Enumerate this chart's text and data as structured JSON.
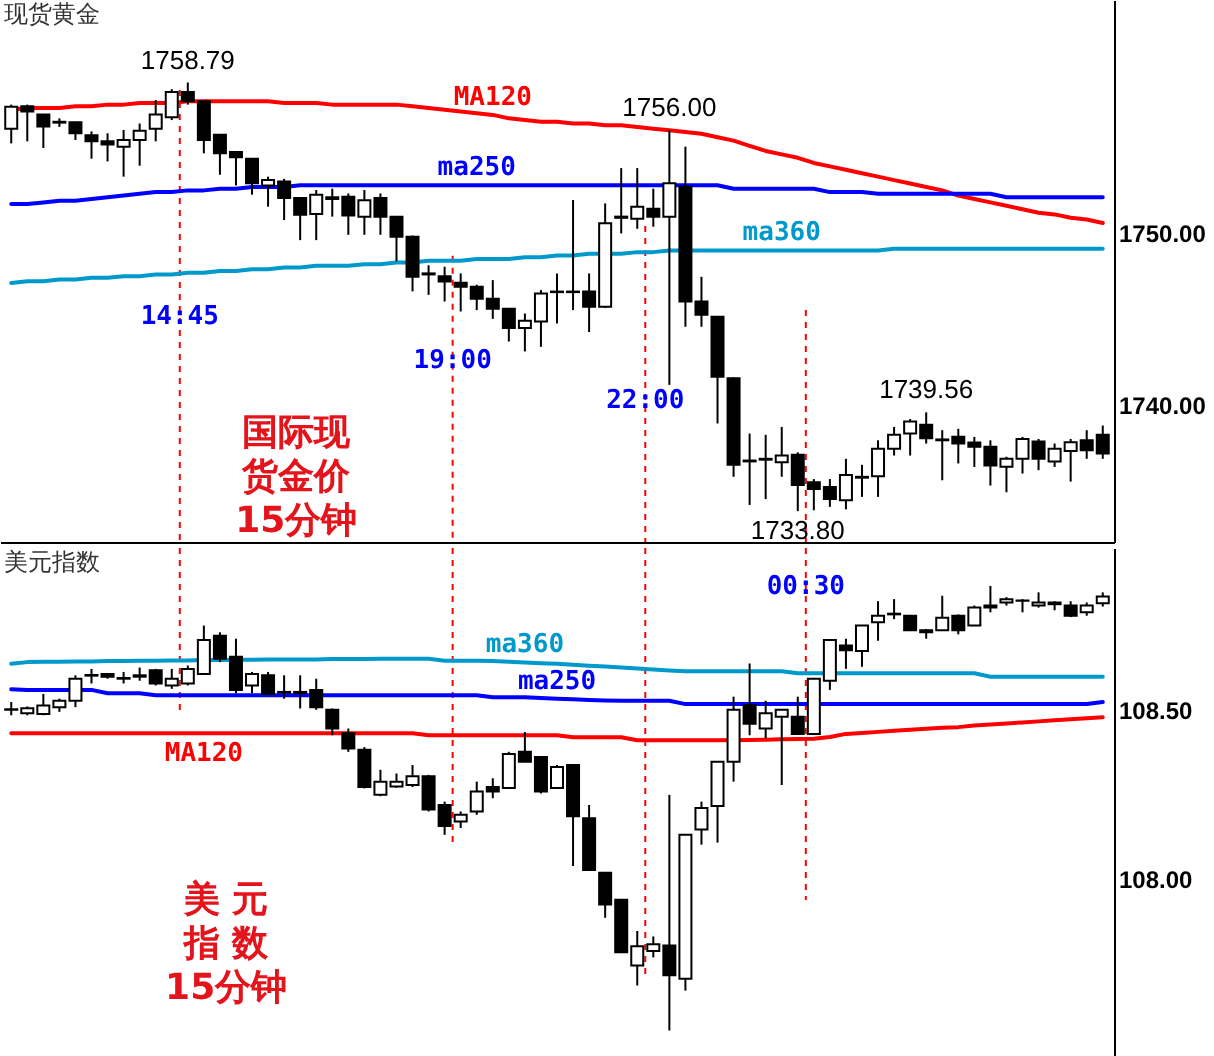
{
  "chart_data": [
    {
      "type": "candlestick",
      "title": "现货黄金",
      "tick_labels": "y",
      "ylim": [
        1732.0,
        1763.6
      ],
      "yticks": [
        {
          "value": 1740,
          "label": "1740.00"
        },
        {
          "value": 1750,
          "label": "1750.00"
        }
      ],
      "categories": [
        null,
        null,
        null,
        null,
        null,
        null,
        null,
        null,
        null,
        null,
        null,
        null,
        null,
        null,
        null,
        null,
        null,
        null,
        null,
        null,
        null,
        null,
        null,
        null,
        null,
        null,
        null,
        null,
        null,
        null,
        null,
        null,
        null,
        null,
        null,
        null,
        null,
        null,
        null,
        null,
        null,
        null,
        null,
        null,
        null,
        null,
        null,
        null,
        null,
        null,
        null,
        null,
        null,
        null,
        null,
        null,
        null,
        null,
        null,
        null,
        null,
        null,
        null,
        null,
        null,
        null,
        null,
        null,
        null
      ],
      "ohlc": [
        [
          1756.1,
          1757.5,
          1755.24,
          1757.38
        ],
        [
          1757.4,
          1757.5,
          1755.36,
          1757.1
        ],
        [
          1756.92,
          1756.92,
          1754.97,
          1756.22
        ],
        [
          1756.5,
          1756.7,
          1756.2,
          1756.45
        ],
        [
          1756.47,
          1756.5,
          1755.44,
          1755.83
        ],
        [
          1755.71,
          1755.94,
          1754.35,
          1755.36
        ],
        [
          1755.36,
          1755.83,
          1754.19,
          1755.17
        ],
        [
          1755.05,
          1756.02,
          1753.3,
          1755.44
        ],
        [
          1755.44,
          1756.4,
          1753.94,
          1755.98
        ],
        [
          1756.1,
          1757.77,
          1755.36,
          1756.92
        ],
        [
          1756.76,
          1758.4,
          1756.6,
          1758.24
        ],
        [
          1758.24,
          1758.79,
          1757.5,
          1757.69
        ],
        [
          1757.69,
          1757.7,
          1754.66,
          1755.44
        ],
        [
          1755.75,
          1755.75,
          1753.41,
          1754.66
        ],
        [
          1754.74,
          1754.74,
          1752.79,
          1754.43
        ],
        [
          1754.35,
          1754.35,
          1752.25,
          1752.91
        ],
        [
          1752.79,
          1753.3,
          1751.55,
          1753.1
        ],
        [
          1753.02,
          1753.17,
          1750.77,
          1752.05
        ],
        [
          1752.05,
          1752.05,
          1749.6,
          1751.08
        ],
        [
          1751.12,
          1752.52,
          1749.6,
          1752.24
        ],
        [
          1752.1,
          1752.6,
          1750.97,
          1752.0
        ],
        [
          1752.13,
          1752.32,
          1749.91,
          1751.04
        ],
        [
          1750.96,
          1752.52,
          1749.91,
          1751.93
        ],
        [
          1752.05,
          1752.32,
          1749.91,
          1750.96
        ],
        [
          1750.96,
          1750.96,
          1748.36,
          1749.8
        ],
        [
          1749.8,
          1749.87,
          1746.61,
          1747.46
        ],
        [
          1747.66,
          1748.13,
          1746.41,
          1747.6
        ],
        [
          1747.5,
          1748.05,
          1746.02,
          1747.19
        ],
        [
          1747.11,
          1747.66,
          1745.44,
          1746.88
        ],
        [
          1746.88,
          1747.0,
          1745.52,
          1746.18
        ],
        [
          1746.18,
          1747.27,
          1745.01,
          1745.6
        ],
        [
          1745.6,
          1745.6,
          1743.69,
          1744.47
        ],
        [
          1744.47,
          1745.32,
          1743.11,
          1744.9
        ],
        [
          1744.86,
          1746.69,
          1743.38,
          1746.49
        ],
        [
          1746.57,
          1747.66,
          1744.74,
          1746.6
        ],
        [
          1746.6,
          1751.94,
          1745.52,
          1746.57
        ],
        [
          1746.6,
          1747.66,
          1744.24,
          1745.71
        ],
        [
          1745.71,
          1751.74,
          1745.64,
          1750.58
        ],
        [
          1750.97,
          1753.8,
          1749.99,
          1750.9
        ],
        [
          1750.85,
          1753.8,
          1750.26,
          1751.55
        ],
        [
          1751.43,
          1752.6,
          1750.38,
          1750.97
        ],
        [
          1750.97,
          1756.0,
          1741.16,
          1752.91
        ],
        [
          1752.71,
          1755.05,
          1744.55,
          1746.02
        ],
        [
          1746.02,
          1747.46,
          1744.55,
          1745.25
        ],
        [
          1745.13,
          1745.13,
          1738.91,
          1741.63
        ],
        [
          1741.55,
          1741.6,
          1735.8,
          1736.5
        ],
        [
          1736.75,
          1738.32,
          1734.16,
          1736.7
        ],
        [
          1736.8,
          1738.25,
          1734.5,
          1736.85
        ],
        [
          1736.65,
          1738.71,
          1735.8,
          1737.04
        ],
        [
          1737.08,
          1737.23,
          1733.8,
          1735.33
        ],
        [
          1735.48,
          1735.67,
          1733.85,
          1735.09
        ],
        [
          1735.21,
          1735.67,
          1734.05,
          1734.51
        ],
        [
          1734.43,
          1736.85,
          1733.9,
          1735.91
        ],
        [
          1735.75,
          1736.5,
          1734.63,
          1735.8
        ],
        [
          1735.83,
          1737.93,
          1734.63,
          1737.43
        ],
        [
          1737.43,
          1738.71,
          1737.04,
          1738.25
        ],
        [
          1738.32,
          1739.17,
          1737.04,
          1739.02
        ],
        [
          1738.83,
          1739.56,
          1737.74,
          1738.05
        ],
        [
          1737.98,
          1738.52,
          1735.6,
          1737.93
        ],
        [
          1738.13,
          1738.6,
          1736.58,
          1737.74
        ],
        [
          1737.8,
          1738.13,
          1736.38,
          1737.55
        ],
        [
          1737.55,
          1737.93,
          1735.29,
          1736.46
        ],
        [
          1736.38,
          1736.97,
          1734.9,
          1736.85
        ],
        [
          1736.85,
          1738.13,
          1735.99,
          1738.01
        ],
        [
          1737.86,
          1738.01,
          1736.19,
          1736.85
        ],
        [
          1736.69,
          1737.74,
          1736.38,
          1737.43
        ],
        [
          1737.31,
          1738.01,
          1735.52,
          1737.82
        ],
        [
          1737.93,
          1738.52,
          1736.85,
          1737.35
        ],
        [
          1738.25,
          1738.79,
          1736.85,
          1737.16
        ]
      ],
      "series": [
        {
          "type": "line",
          "name": "MA120",
          "color": "#ff0000",
          "values": [
            1757.2,
            1757.3,
            1757.3,
            1757.3,
            1757.4,
            1757.4,
            1757.5,
            1757.5,
            1757.6,
            1757.6,
            1757.6,
            1757.7,
            1757.7,
            1757.7,
            1757.7,
            1757.7,
            1757.7,
            1757.6,
            1757.6,
            1757.6,
            1757.5,
            1757.5,
            1757.5,
            1757.5,
            1757.5,
            1757.4,
            1757.3,
            1757.2,
            1757.1,
            1757.0,
            1756.9,
            1756.7,
            1756.6,
            1756.5,
            1756.5,
            1756.4,
            1756.4,
            1756.3,
            1756.3,
            1756.2,
            1756.1,
            1756.0,
            1755.9,
            1755.8,
            1755.6,
            1755.4,
            1755.1,
            1754.8,
            1754.6,
            1754.4,
            1754.1,
            1753.9,
            1753.7,
            1753.5,
            1753.3,
            1753.1,
            1752.9,
            1752.7,
            1752.5,
            1752.2,
            1752.0,
            1751.8,
            1751.6,
            1751.4,
            1751.2,
            1751.1,
            1750.9,
            1750.8,
            1750.6
          ]
        },
        {
          "type": "line",
          "name": "ma250",
          "color": "#0000ff",
          "values": [
            1751.7,
            1751.7,
            1751.8,
            1751.9,
            1751.9,
            1752.0,
            1752.1,
            1752.2,
            1752.3,
            1752.4,
            1752.4,
            1752.5,
            1752.5,
            1752.6,
            1752.6,
            1752.7,
            1752.7,
            1752.7,
            1752.8,
            1752.8,
            1752.8,
            1752.8,
            1752.8,
            1752.8,
            1752.8,
            1752.8,
            1752.8,
            1752.8,
            1752.8,
            1752.8,
            1752.8,
            1752.8,
            1752.8,
            1752.8,
            1752.8,
            1752.8,
            1752.8,
            1752.8,
            1752.8,
            1752.8,
            1752.8,
            1752.8,
            1752.8,
            1752.8,
            1752.8,
            1752.6,
            1752.6,
            1752.6,
            1752.6,
            1752.6,
            1752.6,
            1752.4,
            1752.4,
            1752.4,
            1752.3,
            1752.3,
            1752.3,
            1752.3,
            1752.3,
            1752.3,
            1752.3,
            1752.3,
            1752.1,
            1752.1,
            1752.1,
            1752.1,
            1752.1,
            1752.1,
            1752.1
          ]
        },
        {
          "type": "line",
          "name": "ma360",
          "color": "#0099cc",
          "values": [
            1747.1,
            1747.2,
            1747.2,
            1747.3,
            1747.3,
            1747.4,
            1747.4,
            1747.5,
            1747.5,
            1747.6,
            1747.6,
            1747.7,
            1747.7,
            1747.8,
            1747.8,
            1747.9,
            1747.9,
            1748.0,
            1748.0,
            1748.1,
            1748.1,
            1748.1,
            1748.2,
            1748.2,
            1748.3,
            1748.3,
            1748.4,
            1748.4,
            1748.4,
            1748.5,
            1748.5,
            1748.5,
            1748.6,
            1748.6,
            1748.7,
            1748.7,
            1748.8,
            1748.8,
            1748.8,
            1748.9,
            1748.9,
            1749.0,
            1749.0,
            1749.0,
            1749.0,
            1749.0,
            1749.0,
            1749.0,
            1749.0,
            1749.0,
            1749.0,
            1749.0,
            1749.0,
            1749.0,
            1749.0,
            1749.1,
            1749.1,
            1749.1,
            1749.1,
            1749.1,
            1749.1,
            1749.1,
            1749.1,
            1749.1,
            1749.1,
            1749.1,
            1749.1,
            1749.1,
            1749.1
          ]
        }
      ],
      "annotations": [
        "国际现货金价15分钟",
        "14:45",
        "19:00",
        "22:00",
        {
          "text": "1758.79",
          "y": 1758.79
        },
        {
          "text": "1756.00",
          "y": 1756.0
        },
        {
          "text": "1739.56",
          "y": 1739.56
        },
        {
          "text": "1733.80",
          "y": 1733.8
        }
      ]
    },
    {
      "type": "candlestick",
      "title": "美元指数",
      "tick_labels": "y",
      "ylim": [
        107.466,
        108.978
      ],
      "yticks": [
        {
          "value": 108,
          "label": "108.00"
        },
        {
          "value": 108.5,
          "label": "108.50"
        }
      ],
      "categories": [
        null,
        null,
        null,
        null,
        null,
        null,
        null,
        null,
        null,
        null,
        null,
        null,
        null,
        null,
        null,
        null,
        null,
        null,
        null,
        null,
        null,
        null,
        null,
        null,
        null,
        null,
        null,
        null,
        null,
        null,
        null,
        null,
        null,
        null,
        null,
        null,
        null,
        null,
        null,
        null,
        null,
        null,
        null,
        null,
        null,
        null,
        null,
        null,
        null,
        null,
        null,
        null,
        null,
        null,
        null,
        null,
        null,
        null,
        null,
        null,
        null,
        null,
        null,
        null,
        null,
        null,
        null,
        null,
        null
      ],
      "ohlc": [
        [
          108.5,
          108.523,
          108.484,
          108.502
        ],
        [
          108.49,
          108.51,
          108.484,
          108.505
        ],
        [
          108.488,
          108.547,
          108.484,
          108.513
        ],
        [
          108.508,
          108.533,
          108.494,
          108.527
        ],
        [
          108.527,
          108.602,
          108.508,
          108.592
        ],
        [
          108.601,
          108.621,
          108.578,
          108.603
        ],
        [
          108.606,
          108.608,
          108.592,
          108.598
        ],
        [
          108.592,
          108.612,
          108.578,
          108.594
        ],
        [
          108.602,
          108.625,
          108.586,
          108.598
        ],
        [
          108.617,
          108.621,
          108.572,
          108.578
        ],
        [
          108.572,
          108.621,
          108.562,
          108.592
        ],
        [
          108.578,
          108.631,
          108.572,
          108.621
        ],
        [
          108.606,
          108.749,
          108.606,
          108.706
        ],
        [
          108.719,
          108.729,
          108.641,
          108.651
        ],
        [
          108.657,
          108.71,
          108.549,
          108.559
        ],
        [
          108.572,
          108.612,
          108.549,
          108.606
        ],
        [
          108.602,
          108.612,
          108.543,
          108.547
        ],
        [
          108.553,
          108.602,
          108.533,
          108.551
        ],
        [
          108.553,
          108.602,
          108.504,
          108.55
        ],
        [
          108.559,
          108.592,
          108.5,
          108.508
        ],
        [
          108.5,
          108.504,
          108.425,
          108.445
        ],
        [
          108.431,
          108.445,
          108.376,
          108.386
        ],
        [
          108.382,
          108.39,
          108.268,
          108.272
        ],
        [
          108.249,
          108.323,
          108.245,
          108.288
        ],
        [
          108.274,
          108.312,
          108.27,
          108.288
        ],
        [
          108.278,
          108.337,
          108.272,
          108.304
        ],
        [
          108.304,
          108.308,
          108.2,
          108.206
        ],
        [
          108.219,
          108.229,
          108.131,
          108.157
        ],
        [
          108.17,
          108.2,
          108.151,
          108.19
        ],
        [
          108.2,
          108.288,
          108.19,
          108.259
        ],
        [
          108.272,
          108.298,
          108.239,
          108.259
        ],
        [
          108.269,
          108.376,
          108.269,
          108.37
        ],
        [
          108.376,
          108.435,
          108.347,
          108.347
        ],
        [
          108.361,
          108.361,
          108.253,
          108.259
        ],
        [
          108.269,
          108.337,
          108.269,
          108.331
        ],
        [
          108.337,
          108.337,
          108.039,
          108.186
        ],
        [
          108.18,
          108.219,
          108.027,
          108.027
        ],
        [
          108.019,
          108.019,
          107.886,
          107.925
        ],
        [
          107.939,
          107.939,
          107.784,
          107.784
        ],
        [
          107.745,
          107.847,
          107.686,
          107.802
        ],
        [
          107.788,
          107.831,
          107.769,
          107.808
        ],
        [
          107.804,
          108.249,
          107.553,
          107.716
        ],
        [
          107.706,
          108.131,
          107.671,
          108.131
        ],
        [
          108.147,
          108.229,
          108.102,
          108.21
        ],
        [
          108.216,
          108.347,
          108.108,
          108.347
        ],
        [
          108.347,
          108.539,
          108.288,
          108.5
        ],
        [
          108.514,
          108.637,
          108.425,
          108.459
        ],
        [
          108.445,
          108.527,
          108.416,
          108.49
        ],
        [
          108.48,
          108.5,
          108.278,
          108.5
        ],
        [
          108.48,
          108.539,
          108.429,
          108.429
        ],
        [
          108.429,
          108.592,
          108.429,
          108.592
        ],
        [
          108.586,
          108.706,
          108.559,
          108.706
        ],
        [
          108.69,
          108.71,
          108.621,
          108.676
        ],
        [
          108.674,
          108.749,
          108.627,
          108.749
        ],
        [
          108.759,
          108.821,
          108.704,
          108.778
        ],
        [
          108.782,
          108.827,
          108.768,
          108.784
        ],
        [
          108.778,
          108.778,
          108.735,
          108.735
        ],
        [
          108.729,
          108.739,
          108.71,
          108.735
        ],
        [
          108.735,
          108.837,
          108.735,
          108.772
        ],
        [
          108.778,
          108.782,
          108.723,
          108.735
        ],
        [
          108.749,
          108.808,
          108.749,
          108.802
        ],
        [
          108.802,
          108.866,
          108.788,
          108.808
        ],
        [
          108.817,
          108.833,
          108.808,
          108.827
        ],
        [
          108.823,
          108.827,
          108.788,
          108.822
        ],
        [
          108.808,
          108.847,
          108.802,
          108.817
        ],
        [
          108.812,
          108.821,
          108.794,
          108.817
        ],
        [
          108.808,
          108.821,
          108.774,
          108.778
        ],
        [
          108.788,
          108.817,
          108.778,
          108.808
        ],
        [
          108.815,
          108.847,
          108.805,
          108.835
        ]
      ],
      "series": [
        {
          "type": "line",
          "name": "MA120",
          "color": "#ff0000",
          "values": [
            108.431,
            108.431,
            108.431,
            108.431,
            108.431,
            108.431,
            108.431,
            108.431,
            108.431,
            108.431,
            108.431,
            108.431,
            108.431,
            108.431,
            108.431,
            108.431,
            108.431,
            108.431,
            108.431,
            108.431,
            108.431,
            108.431,
            108.431,
            108.431,
            108.431,
            108.431,
            108.425,
            108.425,
            108.425,
            108.425,
            108.425,
            108.425,
            108.425,
            108.425,
            108.425,
            108.419,
            108.419,
            108.419,
            108.419,
            108.41,
            108.41,
            108.41,
            108.41,
            108.41,
            108.41,
            108.41,
            108.411,
            108.412,
            108.413,
            108.414,
            108.415,
            108.42,
            108.429,
            108.432,
            108.435,
            108.438,
            108.441,
            108.444,
            108.447,
            108.449,
            108.454,
            108.457,
            108.46,
            108.463,
            108.466,
            108.469,
            108.472,
            108.475,
            108.478
          ]
        },
        {
          "type": "line",
          "name": "ma250",
          "color": "#0000ff",
          "values": [
            108.561,
            108.559,
            108.559,
            108.559,
            108.559,
            108.559,
            108.549,
            108.549,
            108.549,
            108.543,
            108.543,
            108.543,
            108.543,
            108.543,
            108.543,
            108.543,
            108.543,
            108.543,
            108.543,
            108.543,
            108.543,
            108.543,
            108.543,
            108.543,
            108.543,
            108.543,
            108.543,
            108.543,
            108.543,
            108.543,
            108.537,
            108.537,
            108.537,
            108.535,
            108.533,
            108.531,
            108.529,
            108.528,
            108.527,
            108.527,
            108.527,
            108.527,
            108.517,
            108.517,
            108.517,
            108.517,
            108.517,
            108.517,
            108.517,
            108.517,
            108.517,
            108.517,
            108.517,
            108.517,
            108.517,
            108.517,
            108.517,
            108.517,
            108.517,
            108.517,
            108.517,
            108.517,
            108.517,
            108.517,
            108.517,
            108.517,
            108.517,
            108.517,
            108.523
          ]
        },
        {
          "type": "line",
          "name": "ma360",
          "color": "#0099cc",
          "values": [
            108.636,
            108.641,
            108.642,
            108.642,
            108.643,
            108.643,
            108.644,
            108.644,
            108.645,
            108.645,
            108.646,
            108.646,
            108.647,
            108.647,
            108.648,
            108.648,
            108.649,
            108.649,
            108.649,
            108.649,
            108.65,
            108.65,
            108.65,
            108.651,
            108.651,
            108.651,
            108.651,
            108.645,
            108.645,
            108.645,
            108.644,
            108.642,
            108.64,
            108.638,
            108.636,
            108.633,
            108.63,
            108.628,
            108.625,
            108.622,
            108.619,
            108.616,
            108.614,
            108.614,
            108.614,
            108.614,
            108.614,
            108.614,
            108.614,
            108.608,
            108.608,
            108.608,
            108.608,
            108.608,
            108.608,
            108.608,
            108.608,
            108.608,
            108.608,
            108.608,
            108.608,
            108.598,
            108.598,
            108.598,
            108.598,
            108.598,
            108.598,
            108.598,
            108.598
          ]
        }
      ],
      "annotations": [
        "美 元指 数15分钟",
        "00:30"
      ]
    }
  ]
}
